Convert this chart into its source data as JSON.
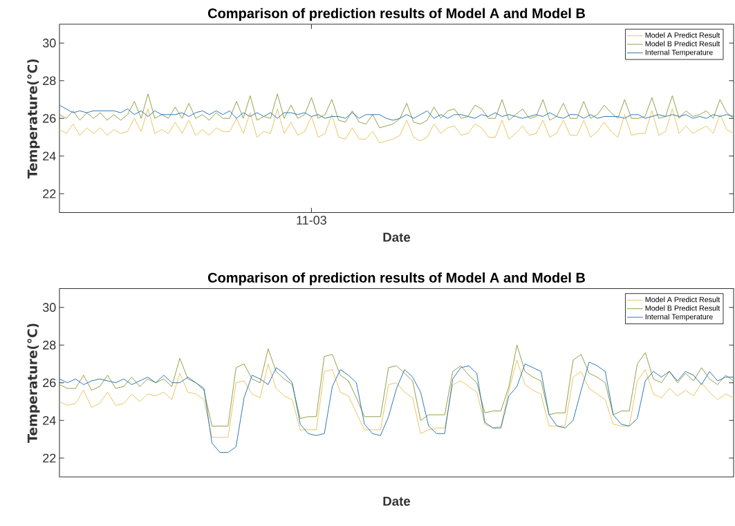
{
  "chart_data": [
    {
      "type": "line",
      "title": "Comparison of prediction results of Model A and Model B",
      "xlabel": "Date",
      "ylabel": "Temperature(℃)",
      "categories": [
        null,
        null,
        null,
        null,
        null,
        null,
        null,
        null,
        null,
        null,
        null,
        null,
        null,
        null,
        null,
        null,
        null,
        null,
        null,
        null,
        null,
        null,
        null,
        null,
        null,
        null,
        null,
        null,
        null,
        null,
        null,
        null,
        null,
        null,
        null,
        null,
        null,
        "11-03",
        null,
        null,
        null,
        null,
        null,
        null,
        null,
        null,
        null,
        null,
        null,
        null,
        null,
        null,
        null,
        null,
        null,
        null,
        null,
        null,
        null,
        null,
        null,
        null,
        null,
        null,
        null,
        null,
        null,
        null,
        null,
        null,
        null,
        null,
        null,
        null,
        null,
        null,
        null,
        null,
        null,
        null,
        null,
        null,
        null,
        null,
        null,
        null,
        null,
        null,
        null,
        null,
        null,
        null,
        null,
        null,
        null,
        null,
        null,
        null,
        null,
        null
      ],
      "ylim": [
        21,
        31
      ],
      "yticks": [
        22,
        24,
        26,
        28,
        30
      ],
      "legend": "top right",
      "series": [
        {
          "name": "Model A Predict Result",
          "color": "#e6c155",
          "values": [
            25.4,
            25.2,
            25.7,
            25.1,
            25.5,
            25.2,
            25.5,
            25.1,
            25.4,
            25.2,
            25.3,
            26.0,
            25.3,
            26.5,
            25.2,
            25.4,
            25.2,
            25.8,
            25.2,
            25.9,
            25.1,
            25.4,
            25.1,
            25.5,
            25.3,
            25.3,
            26.0,
            25.2,
            26.3,
            25.0,
            25.3,
            25.2,
            26.5,
            25.2,
            25.8,
            25.1,
            25.3,
            26.1,
            25.0,
            25.2,
            26.2,
            25.0,
            24.9,
            25.5,
            24.9,
            24.9,
            25.3,
            24.7,
            24.8,
            24.9,
            25.1,
            25.9,
            25.0,
            24.8,
            25.0,
            25.7,
            25.2,
            25.5,
            25.6,
            25.1,
            25.2,
            25.7,
            25.5,
            25.0,
            25.0,
            25.9,
            24.9,
            25.2,
            25.6,
            25.1,
            25.2,
            25.9,
            25.0,
            25.2,
            25.9,
            25.1,
            25.1,
            25.9,
            25.0,
            25.3,
            25.8,
            25.3,
            25.0,
            26.2,
            25.1,
            25.2,
            25.2,
            26.4,
            25.1,
            25.3,
            26.5,
            25.2,
            25.6,
            25.2,
            25.4,
            25.6,
            25.2,
            26.2,
            25.4,
            25.2
          ]
        },
        {
          "name": "Model B Predict Result",
          "color": "#8a9a3a",
          "values": [
            26.2,
            26.0,
            26.4,
            25.9,
            26.3,
            26.0,
            26.3,
            25.9,
            26.2,
            25.9,
            26.2,
            26.9,
            26.0,
            27.3,
            26.0,
            26.2,
            26.0,
            26.6,
            26.0,
            26.8,
            26.0,
            26.2,
            25.9,
            26.3,
            26.0,
            26.0,
            26.9,
            26.0,
            27.2,
            25.9,
            26.1,
            26.0,
            27.3,
            26.0,
            26.7,
            26.0,
            26.2,
            27.1,
            26.0,
            26.2,
            27.0,
            25.9,
            25.8,
            26.4,
            25.8,
            25.7,
            26.2,
            25.5,
            25.6,
            25.7,
            26.0,
            26.8,
            25.8,
            25.7,
            25.9,
            26.6,
            26.0,
            26.4,
            26.5,
            26.0,
            26.1,
            26.7,
            26.5,
            26.0,
            26.0,
            27.0,
            25.9,
            26.2,
            26.5,
            26.0,
            26.1,
            27.0,
            25.9,
            26.1,
            26.8,
            26.0,
            26.0,
            26.9,
            26.0,
            26.2,
            26.7,
            26.3,
            26.0,
            27.0,
            26.0,
            26.0,
            26.1,
            27.1,
            26.0,
            26.1,
            27.2,
            26.0,
            26.4,
            26.1,
            26.2,
            26.4,
            26.0,
            27.0,
            26.3,
            26.0
          ]
        },
        {
          "name": "Internal Temperature",
          "color": "#1f6fb0",
          "values": [
            26.7,
            26.5,
            26.3,
            26.4,
            26.3,
            26.4,
            26.4,
            26.4,
            26.4,
            26.3,
            26.5,
            26.2,
            26.4,
            26.1,
            26.4,
            26.2,
            26.2,
            26.2,
            26.3,
            26.1,
            26.3,
            26.4,
            26.2,
            26.4,
            26.2,
            26.4,
            26.0,
            26.3,
            26.1,
            26.3,
            26.1,
            26.3,
            26.0,
            26.3,
            26.3,
            26.2,
            26.3,
            26.1,
            26.2,
            26.0,
            26.1,
            26.1,
            26.0,
            26.3,
            26.0,
            26.2,
            26.2,
            26.2,
            26.0,
            25.9,
            26.0,
            26.2,
            26.0,
            26.2,
            26.4,
            26.0,
            26.2,
            26.0,
            26.2,
            26.2,
            26.1,
            26.0,
            26.2,
            26.1,
            26.3,
            26.1,
            26.2,
            26.1,
            26.0,
            26.1,
            26.2,
            26.1,
            26.3,
            26.1,
            26.0,
            26.2,
            26.2,
            26.0,
            26.2,
            26.0,
            26.1,
            26.1,
            26.1,
            26.0,
            26.2,
            26.2,
            26.0,
            26.1,
            26.2,
            26.1,
            26.2,
            26.1,
            26.2,
            26.0,
            26.1,
            26.0,
            26.2,
            26.1,
            26.2,
            26.1
          ]
        }
      ]
    },
    {
      "type": "line",
      "title": "Comparison of prediction results of Model A and Model B",
      "xlabel": "Date",
      "ylabel": "Temperature(℃)",
      "categories": [
        null,
        null,
        null,
        null,
        null,
        null,
        null,
        null,
        null,
        null,
        null,
        null,
        null,
        null,
        null,
        null,
        null,
        null,
        null,
        null,
        null,
        null,
        null,
        null,
        null,
        null,
        null,
        null,
        null,
        null,
        null,
        null,
        null,
        null,
        null,
        null,
        null,
        null,
        null,
        null,
        null,
        null,
        null,
        null,
        null,
        null,
        null,
        null,
        null,
        null,
        null,
        null,
        null,
        null,
        null,
        null,
        null,
        null,
        null,
        null,
        null,
        null,
        null,
        null,
        null,
        null,
        null,
        null,
        null,
        null,
        null,
        null,
        null,
        null,
        null,
        null,
        null,
        null,
        null,
        null,
        null,
        null,
        null,
        null,
        null
      ],
      "ylim": [
        21,
        31
      ],
      "yticks": [
        22,
        24,
        26,
        28,
        30
      ],
      "legend": "top right",
      "series": [
        {
          "name": "Model A Predict Result",
          "color": "#e6c155",
          "values": [
            25.0,
            24.8,
            24.9,
            25.6,
            24.7,
            24.9,
            25.5,
            24.8,
            24.9,
            25.4,
            25.0,
            25.4,
            25.3,
            25.5,
            25.1,
            26.5,
            25.5,
            25.4,
            25.1,
            23.1,
            23.1,
            23.1,
            26.0,
            26.1,
            25.4,
            25.2,
            27.0,
            25.7,
            25.3,
            25.1,
            23.5,
            23.5,
            23.5,
            26.6,
            26.7,
            25.5,
            25.3,
            24.4,
            23.5,
            23.5,
            23.5,
            25.9,
            26.0,
            25.5,
            25.2,
            23.3,
            23.5,
            23.6,
            23.6,
            25.9,
            26.1,
            25.8,
            25.5,
            23.8,
            23.6,
            23.7,
            25.6,
            27.2,
            25.9,
            25.6,
            25.4,
            23.7,
            23.7,
            23.7,
            26.3,
            26.6,
            25.7,
            25.4,
            25.1,
            23.8,
            23.7,
            23.7,
            26.1,
            26.7,
            25.4,
            25.2,
            25.7,
            25.3,
            25.6,
            25.3,
            26.0,
            25.5,
            25.1,
            25.4,
            25.2
          ]
        },
        {
          "name": "Model B Predict Result",
          "color": "#8a9a3a",
          "values": [
            25.9,
            25.7,
            25.7,
            26.4,
            25.6,
            25.8,
            26.4,
            25.7,
            25.8,
            26.3,
            25.8,
            26.2,
            26.0,
            26.2,
            25.8,
            27.3,
            26.2,
            26.0,
            25.6,
            23.7,
            23.7,
            23.7,
            26.8,
            27.0,
            26.2,
            26.0,
            27.8,
            26.6,
            26.2,
            25.9,
            24.1,
            24.2,
            24.2,
            27.4,
            27.5,
            26.4,
            26.1,
            25.2,
            24.2,
            24.2,
            24.2,
            26.8,
            26.9,
            26.5,
            26.1,
            24.0,
            24.3,
            24.3,
            24.3,
            26.6,
            26.9,
            26.4,
            26.0,
            24.4,
            24.5,
            24.5,
            25.8,
            28.0,
            26.6,
            26.3,
            26.1,
            24.3,
            24.4,
            24.4,
            27.2,
            27.5,
            26.5,
            26.3,
            26.0,
            24.3,
            24.5,
            24.5,
            27.0,
            27.6,
            26.2,
            26.0,
            26.6,
            26.0,
            26.5,
            26.1,
            26.8,
            26.2,
            25.9,
            26.4,
            26.1
          ]
        },
        {
          "name": "Internal Temperature",
          "color": "#1f6fb0",
          "values": [
            26.2,
            26.0,
            26.2,
            25.9,
            26.1,
            26.2,
            26.1,
            26.0,
            26.2,
            25.9,
            26.1,
            26.3,
            26.0,
            26.4,
            26.0,
            26.0,
            26.3,
            26.0,
            25.7,
            22.8,
            22.3,
            22.3,
            22.6,
            25.2,
            26.4,
            26.2,
            25.9,
            26.8,
            26.5,
            26.0,
            23.8,
            23.3,
            23.2,
            23.3,
            25.8,
            26.7,
            26.4,
            26.0,
            23.8,
            23.3,
            23.2,
            24.2,
            25.7,
            26.7,
            26.3,
            25.5,
            23.7,
            23.3,
            23.3,
            26.2,
            26.8,
            26.9,
            26.5,
            23.9,
            23.6,
            23.6,
            25.3,
            25.8,
            27.0,
            26.8,
            26.6,
            24.3,
            23.7,
            23.6,
            24.0,
            25.6,
            27.1,
            26.9,
            26.6,
            24.3,
            23.8,
            23.7,
            24.1,
            26.1,
            26.6,
            26.3,
            26.6,
            26.1,
            26.6,
            26.4,
            25.9,
            26.6,
            26.1,
            26.3,
            26.3
          ]
        }
      ]
    }
  ]
}
